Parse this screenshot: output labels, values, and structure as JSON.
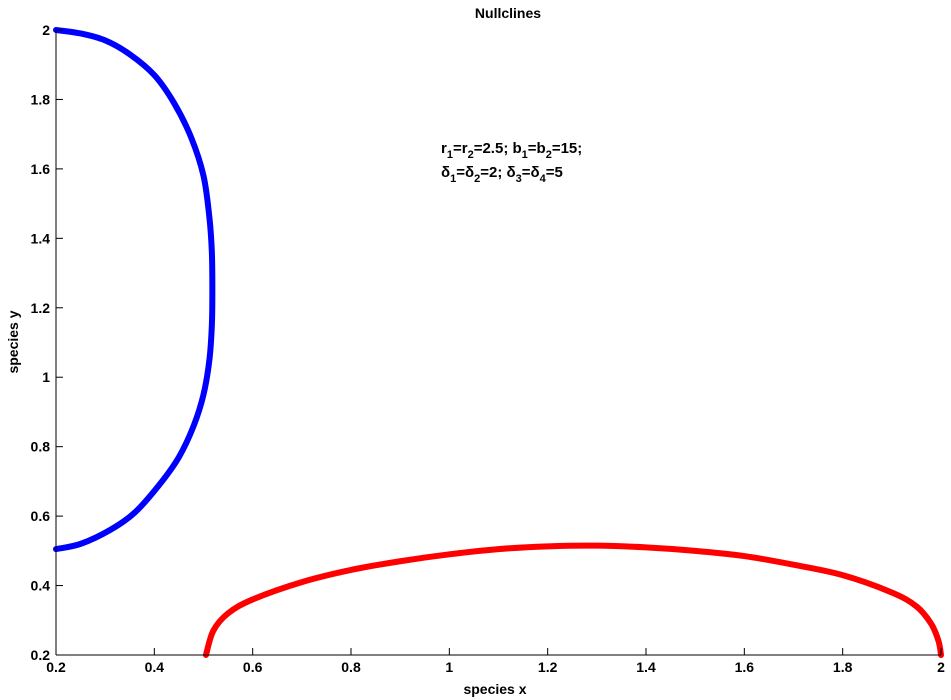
{
  "chart_data": {
    "type": "line",
    "title": "Nullclines",
    "xlabel": "species x",
    "ylabel": "species y",
    "xlim": [
      0.2,
      2
    ],
    "ylim": [
      0.2,
      2
    ],
    "xticks": [
      0.2,
      0.4,
      0.6,
      0.8,
      1,
      1.2,
      1.4,
      1.6,
      1.8,
      2
    ],
    "xtick_labels": [
      "0.2",
      "0.4",
      "0.6",
      "0.8",
      "1",
      "1.2",
      "1.4",
      "1.6",
      "1.8",
      "2"
    ],
    "yticks": [
      0.2,
      0.4,
      0.6,
      0.8,
      1,
      1.2,
      1.4,
      1.6,
      1.8,
      2
    ],
    "ytick_labels": [
      "0.2",
      "0.4",
      "0.6",
      "0.8",
      "1",
      "1.2",
      "1.4",
      "1.6",
      "1.8",
      "2"
    ],
    "grid": false,
    "annotation": {
      "line1": [
        {
          "text": "r",
          "sub": "1"
        },
        {
          "text": "=r",
          "sub": "2"
        },
        {
          "text": "=2.5; b",
          "sub": "1"
        },
        {
          "text": "=b",
          "sub": "2"
        },
        {
          "text": "=15;",
          "sub": ""
        }
      ],
      "line2": [
        {
          "text": "δ",
          "sub": "1"
        },
        {
          "text": "=δ",
          "sub": "2"
        },
        {
          "text": "=2; δ",
          "sub": "3"
        },
        {
          "text": "=δ",
          "sub": "4"
        },
        {
          "text": "=5",
          "sub": ""
        }
      ]
    },
    "series": [
      {
        "color": "#0000ff",
        "points": [
          [
            0.2,
            2.0
          ],
          [
            0.25,
            1.99
          ],
          [
            0.3,
            1.97
          ],
          [
            0.35,
            1.93
          ],
          [
            0.4,
            1.87
          ],
          [
            0.44,
            1.79
          ],
          [
            0.475,
            1.69
          ],
          [
            0.5,
            1.58
          ],
          [
            0.512,
            1.46
          ],
          [
            0.517,
            1.36
          ],
          [
            0.518,
            1.25
          ],
          [
            0.517,
            1.15
          ],
          [
            0.512,
            1.05
          ],
          [
            0.5,
            0.95
          ],
          [
            0.48,
            0.86
          ],
          [
            0.45,
            0.77
          ],
          [
            0.41,
            0.69
          ],
          [
            0.36,
            0.61
          ],
          [
            0.31,
            0.56
          ],
          [
            0.25,
            0.52
          ],
          [
            0.2,
            0.505
          ]
        ]
      },
      {
        "color": "#ff0000",
        "points": [
          [
            0.505,
            0.2
          ],
          [
            0.52,
            0.27
          ],
          [
            0.55,
            0.32
          ],
          [
            0.6,
            0.36
          ],
          [
            0.7,
            0.41
          ],
          [
            0.8,
            0.445
          ],
          [
            0.9,
            0.47
          ],
          [
            1.0,
            0.49
          ],
          [
            1.1,
            0.505
          ],
          [
            1.2,
            0.513
          ],
          [
            1.3,
            0.515
          ],
          [
            1.4,
            0.51
          ],
          [
            1.5,
            0.5
          ],
          [
            1.6,
            0.485
          ],
          [
            1.7,
            0.46
          ],
          [
            1.8,
            0.43
          ],
          [
            1.9,
            0.38
          ],
          [
            1.95,
            0.34
          ],
          [
            1.98,
            0.29
          ],
          [
            1.995,
            0.24
          ],
          [
            2.0,
            0.2
          ]
        ]
      }
    ]
  }
}
